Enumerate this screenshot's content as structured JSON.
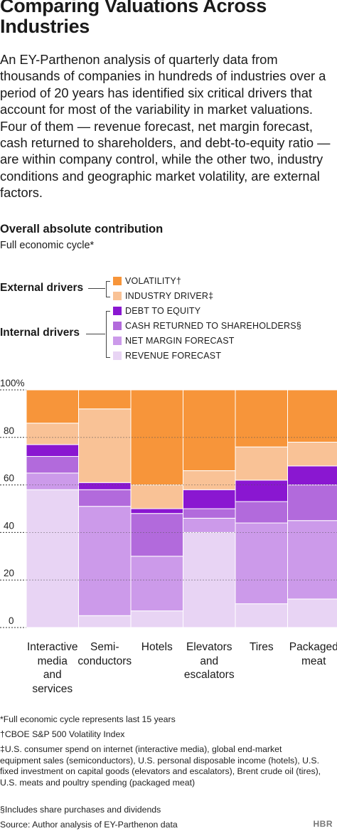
{
  "title": "Comparing Valuations Across Industries",
  "intro": "An EY-Parthenon analysis of quarterly data from thousands of companies in hundreds of industries over a period of 20 years has identified six critical drivers that account for most of the variability in market valuations. Four of them — revenue forecast, net margin forecast, cash returned to shareholders, and debt-to-equity ratio — are within company control, while the other two, industry conditions and geographic market volatility, are external factors.",
  "legend": {
    "external_label": "External drivers",
    "internal_label": "Internal drivers",
    "items": [
      {
        "label": "VOLATILITY†",
        "color": "#f7953a"
      },
      {
        "label": "INDUSTRY DRIVER‡",
        "color": "#f9c296"
      },
      {
        "label": "DEBT TO EQUITY",
        "color": "#8a17d1"
      },
      {
        "label": "CASH RETURNED TO SHAREHOLDERS§",
        "color": "#b26adc"
      },
      {
        "label": "NET MARGIN FORECAST",
        "color": "#cc9aea"
      },
      {
        "label": "REVENUE FORECAST",
        "color": "#e8d4f4"
      }
    ]
  },
  "chart_data": {
    "type": "bar",
    "stacked": true,
    "title": "Overall absolute contribution",
    "subtitle": "Full economic cycle*",
    "categories": [
      "Interactive media and services",
      "Semi-conductors",
      "Hotels",
      "Elevators and escalators",
      "Tires",
      "Packaged meat"
    ],
    "category_lines": [
      [
        "Interactive",
        "media",
        "and",
        "services"
      ],
      [
        "Semi-",
        "conductors"
      ],
      [
        "Hotels"
      ],
      [
        "Elevators",
        "and",
        "escalators"
      ],
      [
        "Tires"
      ],
      [
        "Packaged",
        "meat"
      ]
    ],
    "series": [
      {
        "name": "REVENUE FORECAST",
        "values": [
          58,
          5,
          7,
          40,
          10,
          12
        ]
      },
      {
        "name": "NET MARGIN FORECAST",
        "values": [
          7,
          46,
          23,
          6,
          34,
          33
        ]
      },
      {
        "name": "CASH RETURNED TO SHAREHOLDERS§",
        "values": [
          7,
          7,
          18,
          4,
          9,
          15
        ]
      },
      {
        "name": "DEBT TO EQUITY",
        "values": [
          5,
          3,
          2,
          8,
          9,
          8
        ]
      },
      {
        "name": "INDUSTRY DRIVER‡",
        "values": [
          9,
          31,
          10,
          8,
          14,
          10
        ]
      },
      {
        "name": "VOLATILITY†",
        "values": [
          14,
          8,
          40,
          34,
          24,
          22
        ]
      }
    ],
    "ylim": [
      0,
      100
    ],
    "yticks": [
      "0",
      "20",
      "40",
      "60",
      "80",
      "100%"
    ],
    "ytick_values": [
      0,
      20,
      40,
      60,
      80,
      100
    ],
    "grid": true
  },
  "footnotes": [
    "*Full economic cycle represents last 15 years",
    "†CBOE S&P 500 Volatility Index",
    "‡U.S. consumer spend on internet (interactive media), global end-market equipment sales (semiconductors), U.S. personal disposable income (hotels), U.S. fixed investment on capital goods (elevators and escalators), Brent crude oil (tires), U.S. meats and poultry spending (packaged meat)",
    "§Includes share purchases and dividends",
    "Source: Author analysis of EY-Parthenon data"
  ],
  "brand": "HBR"
}
